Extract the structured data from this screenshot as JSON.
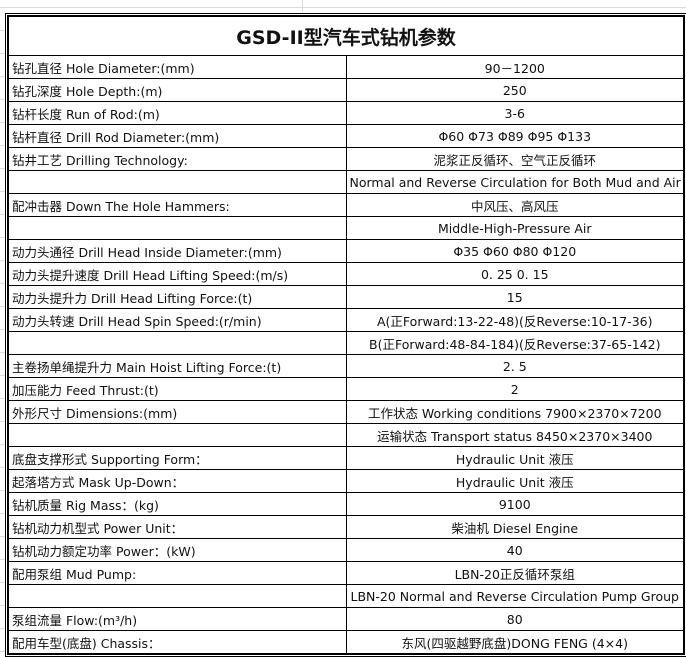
{
  "title": "GSD-II型汽车式钻机参数",
  "rows": [
    {
      "label": "钻孔直径  Hole Diameter:(mm)",
      "value": "90－1200"
    },
    {
      "label": "钻孔深度  Hole Depth:(m)",
      "value": "250"
    },
    {
      "label": "钻杆长度  Run of Rod:(m)",
      "value": "3-6"
    },
    {
      "label": "钻杆直径  Drill Rod Diameter:(mm)",
      "value": "Φ60  Φ73  Φ89  Φ95  Φ133"
    },
    {
      "label": "钻井工艺  Drilling Technology:",
      "value": "泥浆正反循环、空气正反循环"
    },
    {
      "label": "",
      "value": "Normal and Reverse Circulation for Both Mud and Air"
    },
    {
      "label": "配冲击器 Down The Hole Hammers:",
      "value": "中风压、高风压"
    },
    {
      "label": "",
      "value": "Middle-High-Pressure Air"
    },
    {
      "label": "动力头通径 Drill Head Inside Diameter:(mm)",
      "value": "Φ35  Φ60  Φ80  Φ120"
    },
    {
      "label": "动力头提升速度 Drill Head Lifting Speed:(m/s)",
      "value": "0. 25    0. 15"
    },
    {
      "label": "动力头提升力 Drill Head Lifting Force:(t)",
      "value": "15"
    },
    {
      "label": "动力头转速  Drill Head Spin Speed:(r/min)",
      "value": "A(正Forward:13-22-48)(反Reverse:10-17-36)"
    },
    {
      "label": "",
      "value": "B(正Forward:48-84-184)(反Reverse:37-65-142)"
    },
    {
      "label": "主卷扬单绳提升力  Main Hoist Lifting Force:(t)",
      "value": "2. 5"
    },
    {
      "label": "加压能力  Feed Thrust:(t)",
      "value": "2"
    },
    {
      "label": "外形尺寸  Dimensions:(mm)",
      "value": "工作状态  Working conditions  7900×2370×7200"
    },
    {
      "label": "",
      "value": "运输状态  Transport status    8450×2370×3400"
    },
    {
      "label": "底盘支撑形式  Supporting Form：",
      "value": "Hydraulic Unit  液压"
    },
    {
      "label": "起落塔方式  Mask Up-Down：",
      "value": "Hydraulic Unit  液压"
    },
    {
      "label": "钻机质量  Rig Mass：(kg)",
      "value": "9100"
    },
    {
      "label": "钻机动力机型式  Power Unit：",
      "value": "柴油机  Diesel Engine"
    },
    {
      "label": "钻机动力额定功率 Power：(kW)",
      "value": "40"
    },
    {
      "label": "配用泵组 Mud Pump:",
      "value": "LBN-20正反循环泵组"
    },
    {
      "label": "",
      "value": "LBN-20 Normal and Reverse Circulation Pump Group"
    },
    {
      "label": "泵组流量  Flow:(m³/h)",
      "value": "80"
    },
    {
      "label": "配用车型(底盘)  Chassis：",
      "value": "东风(四驱越野底盘)DONG FENG (4×4)"
    }
  ]
}
